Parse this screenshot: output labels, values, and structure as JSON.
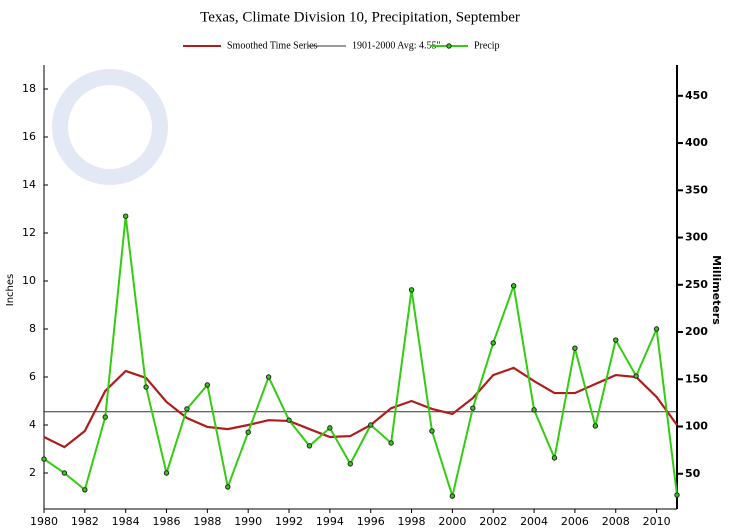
{
  "chart_data": {
    "type": "line",
    "title": "Texas, Climate Division 10, Precipitation, September",
    "y_label": "Inches",
    "y2_label": "Millimeters",
    "x": [
      1980,
      1981,
      1982,
      1983,
      1984,
      1985,
      1986,
      1987,
      1988,
      1989,
      1990,
      1991,
      1992,
      1993,
      1994,
      1995,
      1996,
      1997,
      1998,
      1999,
      2000,
      2001,
      2002,
      2003,
      2004,
      2005,
      2006,
      2007,
      2008,
      2009,
      2010,
      2011
    ],
    "series": [
      {
        "name": "Smoothed Time Series",
        "color": "#b01c1c",
        "markers": false,
        "values": [
          3.5,
          3.08,
          3.75,
          5.42,
          6.25,
          5.96,
          4.96,
          4.29,
          3.92,
          3.83,
          4.0,
          4.2,
          4.17,
          3.83,
          3.5,
          3.54,
          4.0,
          4.7,
          5.0,
          4.67,
          4.46,
          5.12,
          6.08,
          6.38,
          5.83,
          5.33,
          5.33,
          5.71,
          6.08,
          6.0,
          5.17,
          4.0
        ]
      },
      {
        "name": "Precip",
        "color": "#33cc11",
        "markers": true,
        "values": [
          2.58,
          2.0,
          1.3,
          4.33,
          12.7,
          5.58,
          2.0,
          4.67,
          5.67,
          1.42,
          3.7,
          6.0,
          4.2,
          3.13,
          3.88,
          2.38,
          4.0,
          3.25,
          9.63,
          3.75,
          1.04,
          4.7,
          7.42,
          9.8,
          4.63,
          2.63,
          7.2,
          3.96,
          7.54,
          6.04,
          8.0,
          1.08
        ]
      }
    ],
    "reference_line": {
      "name": "1901-2000 Avg: 4.55\"",
      "value": 4.55,
      "color": "#333333"
    },
    "xlim": [
      1980,
      2011
    ],
    "xticks": [
      1980,
      1982,
      1984,
      1986,
      1988,
      1990,
      1992,
      1994,
      1996,
      1998,
      2000,
      2002,
      2004,
      2006,
      2008,
      2010
    ],
    "ylim": [
      0.5,
      19
    ],
    "yticks": [
      2,
      4,
      6,
      8,
      10,
      12,
      14,
      16,
      18
    ],
    "y2lim": [
      12.7,
      482.6
    ],
    "y2ticks": [
      50,
      100,
      150,
      200,
      250,
      300,
      350,
      400,
      450
    ],
    "grid": false
  }
}
